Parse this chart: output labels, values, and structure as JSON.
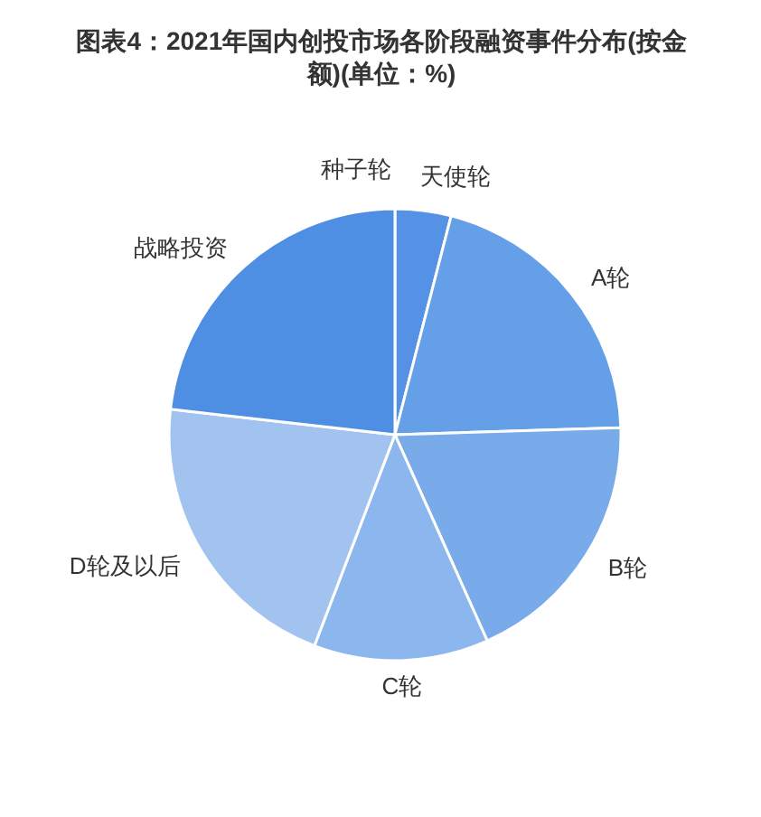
{
  "chart_data": {
    "type": "pie",
    "title": "图表4：2021年国内创投市场各阶段融资事件分布(按金额)(单位：%)",
    "categories": [
      "种子轮",
      "天使轮",
      "A轮",
      "B轮",
      "C轮",
      "D轮及以后",
      "战略投资"
    ],
    "values": [
      null,
      4.0,
      20.5,
      18.8,
      12.5,
      21.0,
      23.2
    ],
    "colors": [
      "#4a8ae2",
      "#5592e5",
      "#659fe8",
      "#79aaea",
      "#8bb6ee",
      "#a2c3f0",
      "#4f8fe3"
    ]
  }
}
